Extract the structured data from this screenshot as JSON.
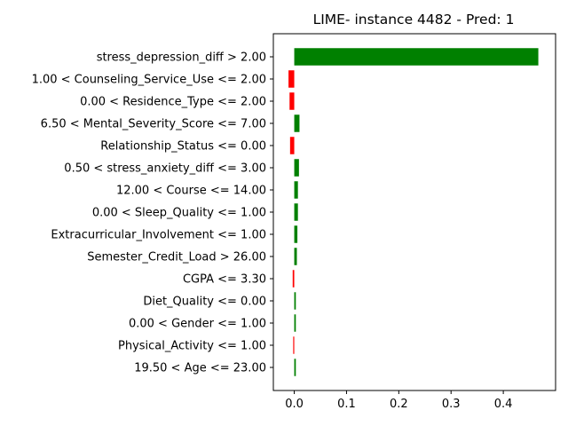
{
  "chart_data": {
    "type": "bar",
    "orientation": "horizontal",
    "title": "LIME- instance 4482 - Pred: 1",
    "xlabel": "",
    "ylabel": "",
    "xlim": [
      -0.04,
      0.5
    ],
    "xticks": [
      0.0,
      0.1,
      0.2,
      0.3,
      0.4
    ],
    "xtick_labels": [
      "0.0",
      "0.1",
      "0.2",
      "0.3",
      "0.4"
    ],
    "grid": false,
    "colors": {
      "positive": "#008000",
      "negative": "#ff0000"
    },
    "categories": [
      "stress_depression_diff > 2.00",
      "1.00 < Counseling_Service_Use <= 2.00",
      "0.00 < Residence_Type <= 2.00",
      "6.50 < Mental_Severity_Score <= 7.00",
      "Relationship_Status <= 0.00",
      "0.50 < stress_anxiety_diff <= 3.00",
      "12.00 < Course <= 14.00",
      "0.00 < Sleep_Quality <= 1.00",
      "Extracurricular_Involvement <= 1.00",
      "Semester_Credit_Load > 26.00",
      "CGPA <= 3.30",
      "Diet_Quality <= 0.00",
      "0.00 < Gender <= 1.00",
      "Physical_Activity <= 1.00",
      "19.50 < Age <= 23.00"
    ],
    "values": [
      0.467,
      -0.011,
      -0.009,
      0.01,
      -0.008,
      0.009,
      0.007,
      0.007,
      0.006,
      0.005,
      -0.003,
      0.003,
      0.003,
      -0.002,
      0.003
    ]
  }
}
